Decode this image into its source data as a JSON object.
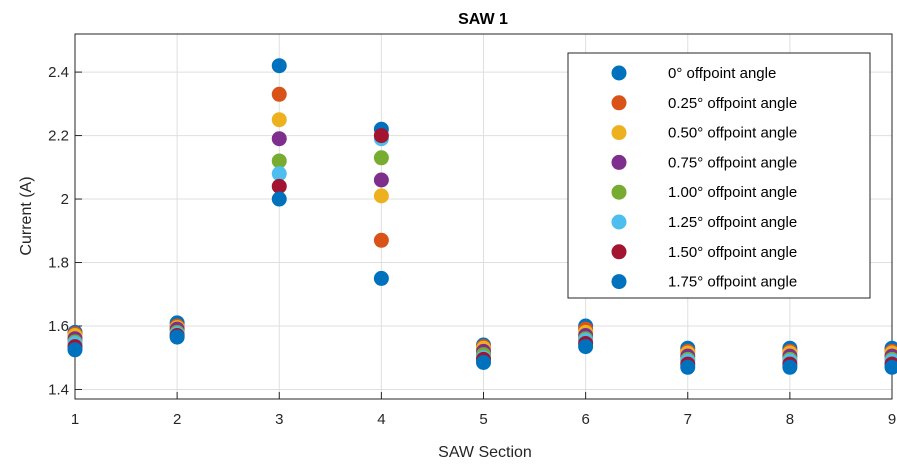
{
  "chart_data": {
    "type": "scatter",
    "title": "SAW 1",
    "xlabel": "SAW Section",
    "ylabel": "Current (A)",
    "xlim": [
      1,
      9
    ],
    "ylim": [
      1.37,
      2.52
    ],
    "xticks": [
      "1",
      "2",
      "3",
      "4",
      "5",
      "6",
      "7",
      "8",
      "9"
    ],
    "yticks": [
      "1.4",
      "1.6",
      "1.8",
      "2",
      "2.2",
      "2.4"
    ],
    "grid": true,
    "legend_position": "top-right",
    "x": [
      1,
      2,
      3,
      4,
      5,
      6,
      7,
      8,
      9
    ],
    "series": [
      {
        "name": "0° offpoint angle",
        "color": "#0072BD",
        "values": [
          1.58,
          1.61,
          2.42,
          2.22,
          1.54,
          1.6,
          1.53,
          1.53,
          1.53
        ]
      },
      {
        "name": "0.25° offpoint angle",
        "color": "#D95319",
        "values": [
          1.575,
          1.6,
          2.33,
          1.87,
          1.535,
          1.59,
          1.52,
          1.52,
          1.52
        ]
      },
      {
        "name": "0.50° offpoint angle",
        "color": "#EDB120",
        "values": [
          1.57,
          1.595,
          2.25,
          2.01,
          1.53,
          1.58,
          1.515,
          1.515,
          1.515
        ]
      },
      {
        "name": "0.75° offpoint angle",
        "color": "#7E2F8E",
        "values": [
          1.56,
          1.59,
          2.19,
          2.06,
          1.52,
          1.57,
          1.505,
          1.505,
          1.505
        ]
      },
      {
        "name": "1.00° offpoint angle",
        "color": "#77AC30",
        "values": [
          1.55,
          1.58,
          2.12,
          2.13,
          1.51,
          1.56,
          1.495,
          1.495,
          1.495
        ]
      },
      {
        "name": "1.25° offpoint angle",
        "color": "#4DBEEE",
        "values": [
          1.545,
          1.575,
          2.08,
          2.19,
          1.5,
          1.555,
          1.49,
          1.49,
          1.49
        ]
      },
      {
        "name": "1.50° offpoint angle",
        "color": "#A2142F",
        "values": [
          1.535,
          1.57,
          2.04,
          2.2,
          1.495,
          1.545,
          1.48,
          1.48,
          1.48
        ]
      },
      {
        "name": "1.75° offpoint angle",
        "color": "#0072BD",
        "values": [
          1.525,
          1.565,
          2.0,
          1.75,
          1.485,
          1.535,
          1.47,
          1.47,
          1.47
        ]
      }
    ]
  }
}
